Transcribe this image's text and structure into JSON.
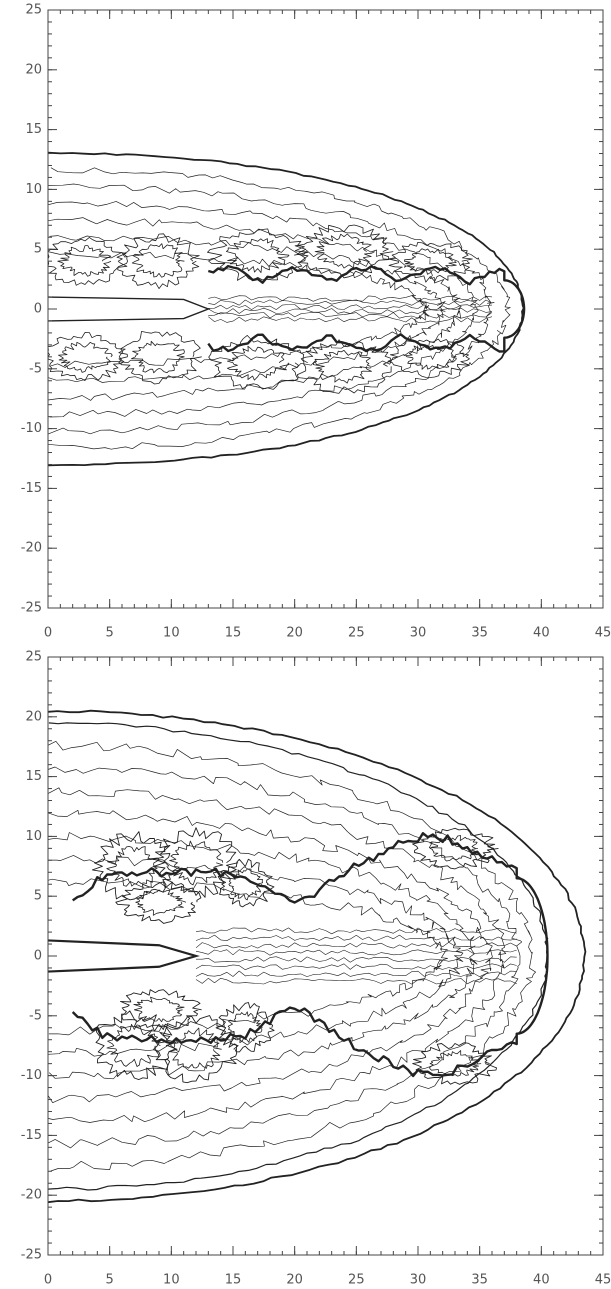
{
  "chart_data": [
    {
      "type": "contour",
      "xlim": [
        0,
        45
      ],
      "ylim": [
        -25,
        25
      ],
      "xticks": [
        0,
        5,
        10,
        15,
        20,
        25,
        30,
        35,
        40,
        45
      ],
      "yticks": [
        -25,
        -20,
        -15,
        -10,
        -5,
        0,
        5,
        10,
        15,
        20,
        25
      ],
      "minor_tick_step": 1
    },
    {
      "type": "contour",
      "xlim": [
        0,
        45
      ],
      "ylim": [
        -25,
        25
      ],
      "xticks": [
        0,
        5,
        10,
        15,
        20,
        25,
        30,
        35,
        40,
        45
      ],
      "yticks": [
        -25,
        -20,
        -15,
        -10,
        -5,
        0,
        5,
        10,
        15,
        20,
        25
      ],
      "minor_tick_step": 1
    }
  ]
}
